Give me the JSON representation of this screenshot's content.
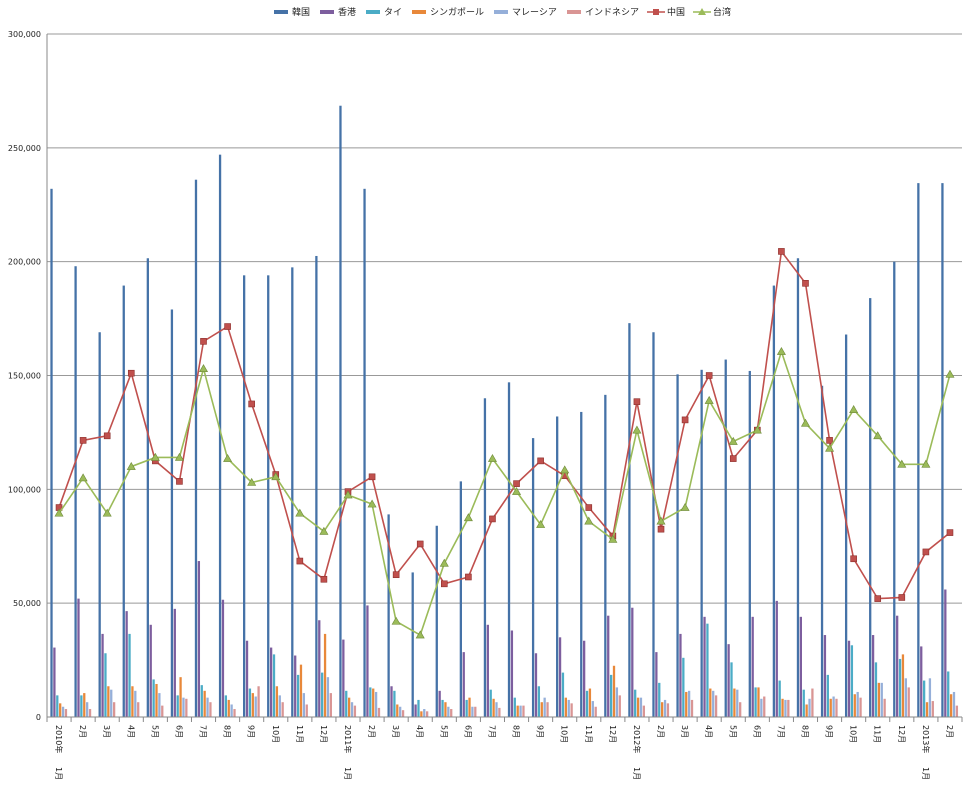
{
  "chart_data": {
    "type": "bar",
    "ylim": [
      0,
      300000
    ],
    "yticks": [
      "0",
      "50,000",
      "100,000",
      "150,000",
      "200,000",
      "250,000",
      "300,000"
    ],
    "ytick_values": [
      0,
      50000,
      100000,
      150000,
      200000,
      250000,
      300000
    ],
    "grid": true,
    "legend_position": "top",
    "categories": [
      "2010年 1月",
      "2月",
      "3月",
      "4月",
      "5月",
      "6月",
      "7月",
      "8月",
      "9月",
      "10月",
      "11月",
      "12月",
      "2011年 1月",
      "2月",
      "3月",
      "4月",
      "5月",
      "6月",
      "7月",
      "8月",
      "9月",
      "10月",
      "11月",
      "12月",
      "2012年 1月",
      "2月",
      "3月",
      "4月",
      "5月",
      "6月",
      "7月",
      "8月",
      "9月",
      "10月",
      "11月",
      "12月",
      "2013年 1月",
      "2月"
    ],
    "xtick_main": [
      "2010年",
      "2月",
      "3月",
      "4月",
      "5月",
      "6月",
      "7月",
      "8月",
      "9月",
      "10月",
      "11月",
      "12月",
      "2011年",
      "2月",
      "3月",
      "4月",
      "5月",
      "6月",
      "7月",
      "8月",
      "9月",
      "10月",
      "11月",
      "12月",
      "2012年",
      "2月",
      "3月",
      "4月",
      "5月",
      "6月",
      "7月",
      "8月",
      "9月",
      "10月",
      "11月",
      "12月",
      "2013年",
      "2月"
    ],
    "xtick_sub": [
      "1月",
      "",
      "",
      "",
      "",
      "",
      "",
      "",
      "",
      "",
      "",
      "",
      "1月",
      "",
      "",
      "",
      "",
      "",
      "",
      "",
      "",
      "",
      "",
      "",
      "1月",
      "",
      "",
      "",
      "",
      "",
      "",
      "",
      "",
      "",
      "",
      "",
      "1月",
      ""
    ],
    "bar_series": [
      {
        "name": "韓国",
        "color": "#4572A7",
        "values": [
          232000,
          198000,
          169000,
          189500,
          201500,
          179000,
          236000,
          247000,
          194000,
          194000,
          197500,
          202500,
          268500,
          232000,
          89000,
          63500,
          84000,
          103500,
          140000,
          147000,
          122500,
          132000,
          134000,
          141500,
          173000,
          169000,
          150500,
          152500,
          157000,
          152000,
          189500,
          201500,
          145500,
          168000,
          184000,
          200000,
          234500,
          234500
        ]
      },
      {
        "name": "香港",
        "color": "#7D5E9E",
        "values": [
          30500,
          52000,
          36500,
          46500,
          40500,
          47500,
          68500,
          51500,
          33500,
          30500,
          27000,
          42500,
          34000,
          49000,
          13500,
          5500,
          11500,
          28500,
          40500,
          38000,
          28000,
          35000,
          33500,
          44500,
          48000,
          28500,
          36500,
          44000,
          32000,
          44000,
          51000,
          44000,
          36000,
          33500,
          36000,
          44500,
          31000,
          56000
        ]
      },
      {
        "name": "タイ",
        "color": "#4BACC6",
        "values": [
          9500,
          9500,
          28000,
          36500,
          16500,
          9500,
          14000,
          9500,
          12500,
          27500,
          18500,
          19500,
          11500,
          13000,
          11500,
          7500,
          7500,
          7500,
          12000,
          8500,
          13500,
          19500,
          11500,
          18500,
          12000,
          15000,
          26000,
          41000,
          24000,
          13000,
          16000,
          12000,
          18500,
          31500,
          24000,
          25500,
          16000,
          20000
        ]
      },
      {
        "name": "シンガポール",
        "color": "#E8883A",
        "values": [
          6000,
          10500,
          13500,
          13500,
          14500,
          17500,
          11500,
          7500,
          10500,
          13500,
          23000,
          36500,
          8500,
          12500,
          5500,
          2500,
          6500,
          8500,
          8000,
          5000,
          6500,
          8500,
          12500,
          22500,
          8500,
          6500,
          11000,
          12500,
          12500,
          13000,
          8000,
          5500,
          8000,
          10000,
          15000,
          27500,
          6500,
          10000
        ]
      },
      {
        "name": "マレーシア",
        "color": "#95AFD9",
        "values": [
          4500,
          6500,
          12000,
          11500,
          10500,
          8500,
          8500,
          5500,
          9000,
          9500,
          10500,
          17500,
          6500,
          11000,
          4500,
          3500,
          4500,
          4500,
          6500,
          5000,
          8500,
          7500,
          7000,
          13000,
          8500,
          7500,
          11500,
          11500,
          12000,
          8000,
          7500,
          8000,
          9000,
          11000,
          15000,
          17000,
          17000,
          11000
        ]
      },
      {
        "name": "インドネシア",
        "color": "#D99594",
        "values": [
          3500,
          3500,
          6500,
          6500,
          5000,
          8000,
          6500,
          3500,
          13500,
          6500,
          5500,
          10500,
          5000,
          4000,
          3000,
          2500,
          3500,
          4500,
          4000,
          5000,
          6500,
          6000,
          4500,
          9500,
          5000,
          6000,
          7500,
          9500,
          6500,
          9000,
          7500,
          12500,
          8000,
          8500,
          8000,
          13000,
          7000,
          5000
        ]
      }
    ],
    "line_series": [
      {
        "name": "中国",
        "color": "#C0504D",
        "marker": "square",
        "values": [
          92000,
          121500,
          123500,
          151000,
          112500,
          103500,
          165000,
          171500,
          137500,
          106500,
          68500,
          60500,
          99000,
          105500,
          62500,
          76000,
          58500,
          61500,
          87000,
          102500,
          112500,
          106000,
          92000,
          79500,
          138500,
          82500,
          130500,
          150000,
          113500,
          126000,
          204500,
          190500,
          121500,
          69500,
          52000,
          52500,
          72500,
          81000
        ]
      },
      {
        "name": "台湾",
        "color": "#9BBB59",
        "marker": "triangle",
        "values": [
          89500,
          105000,
          89500,
          110000,
          114000,
          114000,
          153000,
          113500,
          103000,
          105500,
          89500,
          81500,
          97500,
          93500,
          42000,
          36000,
          67500,
          87500,
          113500,
          99000,
          84500,
          108500,
          86000,
          78000,
          126000,
          86000,
          92000,
          139000,
          121000,
          126000,
          160500,
          129000,
          118000,
          135000,
          123500,
          111000,
          111000,
          150500
        ]
      }
    ],
    "legend": [
      "韓国",
      "香港",
      "タイ",
      "シンガポール",
      "マレーシア",
      "インドネシア",
      "中国",
      "台湾"
    ]
  }
}
